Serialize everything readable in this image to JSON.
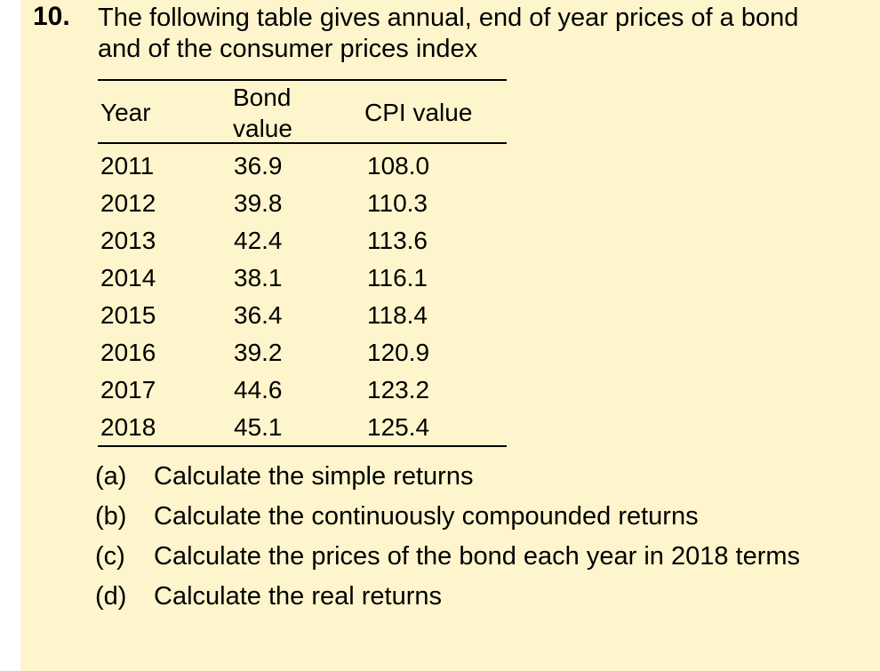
{
  "question": {
    "number": "10.",
    "text_line1": "The following table gives annual, end of year prices of a bond",
    "text_line2": "and of the consumer prices index"
  },
  "table": {
    "headers": {
      "year": "Year",
      "bond_line1": "Bond",
      "bond_line2": "value",
      "cpi": "CPI value"
    },
    "rows": [
      [
        "2011",
        "36.9",
        "108.0"
      ],
      [
        "2012",
        "39.8",
        "110.3"
      ],
      [
        "2013",
        "42.4",
        "113.6"
      ],
      [
        "2014",
        "38.1",
        "116.1"
      ],
      [
        "2015",
        "36.4",
        "118.4"
      ],
      [
        "2016",
        "39.2",
        "120.9"
      ],
      [
        "2017",
        "44.6",
        "123.2"
      ],
      [
        "2018",
        "45.1",
        "125.4"
      ]
    ]
  },
  "tasks": [
    {
      "label": "(a)",
      "text": "Calculate the simple returns"
    },
    {
      "label": "(b)",
      "text": "Calculate the continuously compounded returns"
    },
    {
      "label": "(c)",
      "text": "Calculate the prices of the bond each year in 2018 terms"
    },
    {
      "label": "(d)",
      "text": "Calculate the real returns"
    }
  ],
  "colors": {
    "panel_background": "#fff5cc",
    "text": "#000000"
  }
}
